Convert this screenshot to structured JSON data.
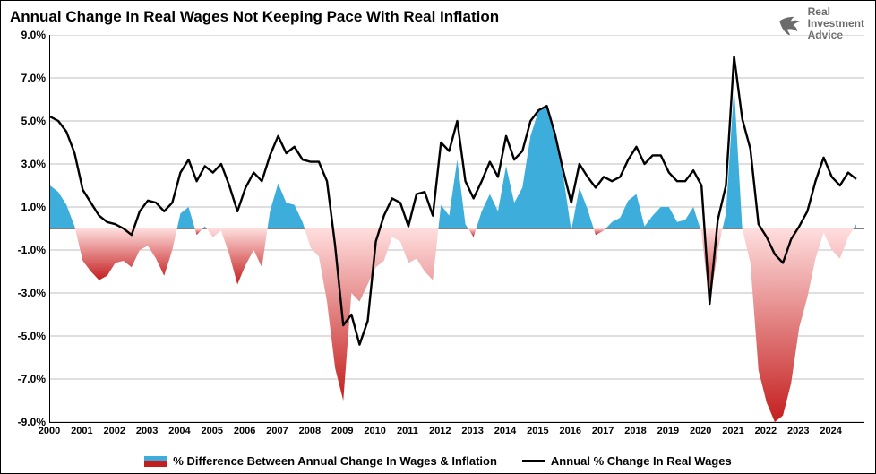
{
  "title": "Annual Change In Real Wages Not Keeping Pace With Real Inflation",
  "brand": {
    "line1": "Real",
    "line2": "Investment",
    "line3": "Advice",
    "color": "#6b6b6b"
  },
  "chart": {
    "type": "area+line",
    "xlim": [
      2000,
      2025
    ],
    "ylim": [
      -9,
      9
    ],
    "ytick_step": 2,
    "ylabels": [
      "-9.0%",
      "-7.0%",
      "-5.0%",
      "-3.0%",
      "-1.0%",
      "1.0%",
      "3.0%",
      "5.0%",
      "7.0%",
      "9.0%"
    ],
    "yvalues": [
      -9,
      -7,
      -5,
      -3,
      -1,
      1,
      3,
      5,
      7,
      9
    ],
    "xlabels": [
      "2000",
      "2001",
      "2002",
      "2003",
      "2004",
      "2005",
      "2006",
      "2007",
      "2008",
      "2009",
      "2010",
      "2011",
      "2012",
      "2013",
      "2014",
      "2015",
      "2016",
      "2017",
      "2018",
      "2019",
      "2020",
      "2021",
      "2022",
      "2023",
      "2024"
    ],
    "grid_color": "#bfbfbf",
    "axis_color": "#000000",
    "zero_line": true,
    "title_fontsize": 17,
    "label_fontsize": 12,
    "line": {
      "label": "Annual % Change In Real Wages",
      "color": "#000000",
      "width": 2.4,
      "x": [
        2000.0,
        2000.25,
        2000.5,
        2000.75,
        2001.0,
        2001.25,
        2001.5,
        2001.75,
        2002.0,
        2002.25,
        2002.5,
        2002.75,
        2003.0,
        2003.25,
        2003.5,
        2003.75,
        2004.0,
        2004.25,
        2004.5,
        2004.75,
        2005.0,
        2005.25,
        2005.5,
        2005.75,
        2006.0,
        2006.25,
        2006.5,
        2006.75,
        2007.0,
        2007.25,
        2007.5,
        2007.75,
        2008.0,
        2008.25,
        2008.5,
        2008.75,
        2009.0,
        2009.25,
        2009.5,
        2009.75,
        2010.0,
        2010.25,
        2010.5,
        2010.75,
        2011.0,
        2011.25,
        2011.5,
        2011.75,
        2012.0,
        2012.25,
        2012.5,
        2012.75,
        2013.0,
        2013.25,
        2013.5,
        2013.75,
        2014.0,
        2014.25,
        2014.5,
        2014.75,
        2015.0,
        2015.25,
        2015.5,
        2015.75,
        2016.0,
        2016.25,
        2016.5,
        2016.75,
        2017.0,
        2017.25,
        2017.5,
        2017.75,
        2018.0,
        2018.25,
        2018.5,
        2018.75,
        2019.0,
        2019.25,
        2019.5,
        2019.75,
        2020.0,
        2020.25,
        2020.5,
        2020.75,
        2021.0,
        2021.25,
        2021.5,
        2021.75,
        2022.0,
        2022.25,
        2022.5,
        2022.75,
        2023.0,
        2023.25,
        2023.5,
        2023.75,
        2024.0,
        2024.25,
        2024.5,
        2024.75
      ],
      "y": [
        5.2,
        5.0,
        4.5,
        3.5,
        1.8,
        1.2,
        0.6,
        0.3,
        0.2,
        0.0,
        -0.3,
        0.8,
        1.3,
        1.2,
        0.8,
        1.2,
        2.6,
        3.2,
        2.2,
        2.9,
        2.6,
        3.0,
        2.0,
        0.8,
        1.9,
        2.6,
        2.2,
        3.4,
        4.3,
        3.5,
        3.8,
        3.2,
        3.1,
        3.1,
        2.2,
        -0.8,
        -4.5,
        -4.0,
        -5.4,
        -4.3,
        -0.6,
        0.6,
        1.4,
        1.2,
        0.1,
        1.6,
        1.7,
        0.6,
        4.0,
        3.6,
        5.0,
        2.2,
        1.4,
        2.2,
        3.1,
        2.4,
        4.3,
        3.2,
        3.6,
        5.0,
        5.5,
        5.7,
        4.4,
        2.7,
        1.2,
        3.0,
        2.4,
        1.9,
        2.4,
        2.2,
        2.4,
        3.2,
        3.8,
        3.0,
        3.4,
        3.4,
        2.6,
        2.2,
        2.2,
        2.7,
        2.0,
        -3.5,
        0.4,
        2.0,
        8.0,
        5.1,
        3.7,
        0.2,
        -0.4,
        -1.2,
        -1.6,
        -0.5,
        0.1,
        0.8,
        2.2,
        3.3,
        2.4,
        2.0,
        2.6,
        2.3
      ]
    },
    "area": {
      "label": "% Difference Between Annual Change In Wages & Inflation",
      "pos_color": "#3daedb",
      "neg_color_top": "#ffdede",
      "neg_color_bottom": "#c41e1e",
      "x": [
        2000.0,
        2000.25,
        2000.5,
        2000.75,
        2001.0,
        2001.25,
        2001.5,
        2001.75,
        2002.0,
        2002.25,
        2002.5,
        2002.75,
        2003.0,
        2003.25,
        2003.5,
        2003.75,
        2004.0,
        2004.25,
        2004.5,
        2004.75,
        2005.0,
        2005.25,
        2005.5,
        2005.75,
        2006.0,
        2006.25,
        2006.5,
        2006.75,
        2007.0,
        2007.25,
        2007.5,
        2007.75,
        2008.0,
        2008.25,
        2008.5,
        2008.75,
        2009.0,
        2009.25,
        2009.5,
        2009.75,
        2010.0,
        2010.25,
        2010.5,
        2010.75,
        2011.0,
        2011.25,
        2011.5,
        2011.75,
        2012.0,
        2012.25,
        2012.5,
        2012.75,
        2013.0,
        2013.25,
        2013.5,
        2013.75,
        2014.0,
        2014.25,
        2014.5,
        2014.75,
        2015.0,
        2015.25,
        2015.5,
        2015.75,
        2016.0,
        2016.25,
        2016.5,
        2016.75,
        2017.0,
        2017.25,
        2017.5,
        2017.75,
        2018.0,
        2018.25,
        2018.5,
        2018.75,
        2019.0,
        2019.25,
        2019.5,
        2019.75,
        2020.0,
        2020.25,
        2020.5,
        2020.75,
        2021.0,
        2021.25,
        2021.5,
        2021.75,
        2022.0,
        2022.25,
        2022.5,
        2022.75,
        2023.0,
        2023.25,
        2023.5,
        2023.75,
        2024.0,
        2024.25,
        2024.5,
        2024.75
      ],
      "y": [
        2.0,
        1.7,
        1.1,
        0.1,
        -1.5,
        -2.0,
        -2.4,
        -2.2,
        -1.6,
        -1.5,
        -1.8,
        -1.0,
        -0.8,
        -1.4,
        -2.2,
        -1.0,
        0.7,
        1.0,
        -0.3,
        0.1,
        -0.4,
        -0.1,
        -1.2,
        -2.6,
        -1.7,
        -1.0,
        -1.8,
        0.8,
        2.1,
        1.2,
        1.1,
        0.3,
        -0.9,
        -1.3,
        -3.4,
        -6.5,
        -8.0,
        -3.0,
        -3.4,
        -2.6,
        -1.8,
        -1.5,
        -0.4,
        -0.6,
        -1.6,
        -1.4,
        -2.0,
        -2.4,
        1.1,
        0.6,
        3.2,
        0.2,
        -0.4,
        0.8,
        1.6,
        0.8,
        2.9,
        1.2,
        1.9,
        4.3,
        5.5,
        5.7,
        4.3,
        2.5,
        -0.1,
        1.9,
        0.9,
        -0.3,
        -0.1,
        0.3,
        0.5,
        1.3,
        1.6,
        0.1,
        0.6,
        1.0,
        1.0,
        0.3,
        0.4,
        1.0,
        -0.2,
        -3.5,
        -1.0,
        0.7,
        6.6,
        0.0,
        -1.6,
        -6.6,
        -8.1,
        -9.0,
        -8.7,
        -7.2,
        -4.6,
        -3.2,
        -1.4,
        -0.2,
        -1.0,
        -1.4,
        -0.4,
        0.2
      ]
    }
  },
  "legend": {
    "items": [
      {
        "swatch": "area",
        "label": "% Difference Between Annual Change In Wages & Inflation"
      },
      {
        "swatch": "line",
        "label": "Annual % Change In Real Wages"
      }
    ]
  }
}
